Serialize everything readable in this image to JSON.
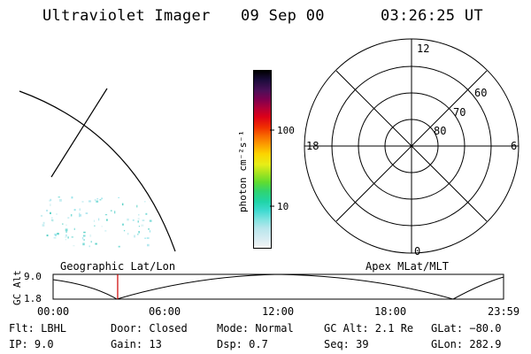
{
  "header": {
    "instrument": "Ultraviolet Imager",
    "date": "09 Sep 00",
    "time": "03:26:25 UT"
  },
  "colorbar": {
    "label": "photon cm⁻²s⁻¹",
    "ticks": [
      "100",
      "10"
    ],
    "colors": [
      "#f4f4f4",
      "#d8ecf2",
      "#b8e6ec",
      "#7fe3e0",
      "#3fdad0",
      "#20d4a8",
      "#30d470",
      "#60dc30",
      "#a4e420",
      "#e6ee18",
      "#fcd400",
      "#fca000",
      "#f86c00",
      "#f03000",
      "#dc0018",
      "#b00038",
      "#7c0050",
      "#4a1058",
      "#1a0c3a",
      "#000000"
    ]
  },
  "map": {
    "name": "Geographic Lat/Lon"
  },
  "polar": {
    "name": "Apex MLat/MLT",
    "mlt_labels": {
      "top": "12",
      "left": "18",
      "right": "6",
      "bottom": "0"
    },
    "lat_labels": [
      "60",
      "70",
      "80"
    ]
  },
  "altitude_plot": {
    "ylabel": "GC Alt",
    "y_ticks": [
      "9.0",
      "1.8"
    ],
    "x_ticks": [
      "00:00",
      "06:00",
      "12:00",
      "18:00",
      "23:59"
    ],
    "current_time_marker_hours": 3.44,
    "marker_color": "#cc0000"
  },
  "info": {
    "flt": "Flt: LBHL",
    "door": "Door: Closed",
    "mode": "Mode: Normal",
    "gc_alt": "GC Alt: 2.1 Re",
    "glat": "GLat: −80.0",
    "ip": "IP:  9.0",
    "gain": "Gain: 13",
    "dsp": "Dsp:    0.7",
    "seq": "Seq: 39",
    "glon": "GLon: 282.9"
  }
}
